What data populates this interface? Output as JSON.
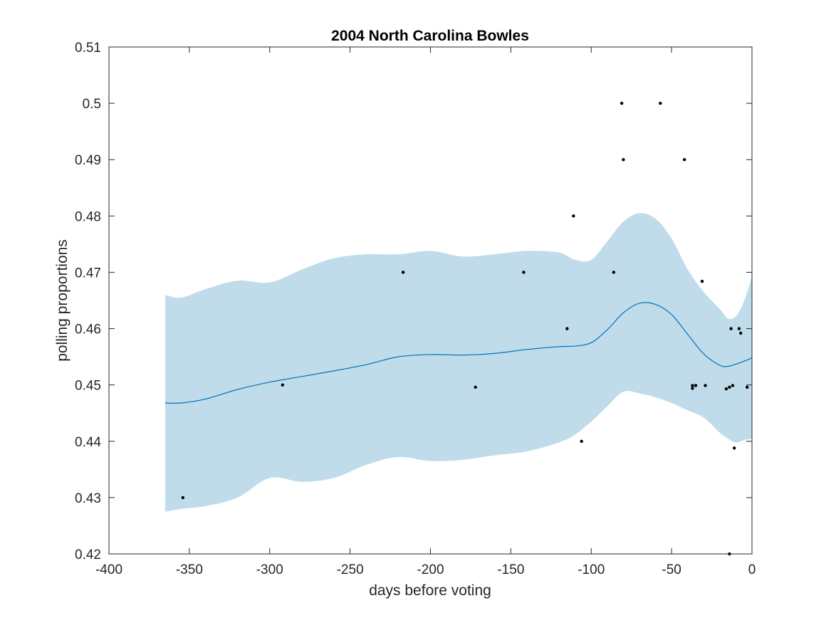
{
  "chart_data": {
    "type": "line",
    "title": "2004 North Carolina Bowles",
    "xlabel": "days before voting",
    "ylabel": "polling proportions",
    "xlim": [
      -400,
      0
    ],
    "ylim": [
      0.42,
      0.51
    ],
    "xticks": [
      "-400",
      "-350",
      "-300",
      "-250",
      "-200",
      "-150",
      "-100",
      "-50",
      "0"
    ],
    "xtick_values": [
      -400,
      -350,
      -300,
      -250,
      -200,
      -150,
      -100,
      -50,
      0
    ],
    "yticks": [
      "0.42",
      "0.43",
      "0.44",
      "0.45",
      "0.46",
      "0.47",
      "0.48",
      "0.49",
      "0.5",
      "0.51"
    ],
    "ytick_values": [
      0.42,
      0.43,
      0.44,
      0.45,
      0.46,
      0.47,
      0.48,
      0.49,
      0.5,
      0.51
    ],
    "grid": false,
    "colors": {
      "mean": "#0072bd",
      "band": "#c0dceb",
      "points": "#000000",
      "axes": "#262626"
    },
    "band": {
      "x": [
        -365,
        -355,
        -340,
        -320,
        -300,
        -280,
        -260,
        -240,
        -220,
        -200,
        -180,
        -160,
        -140,
        -120,
        -110,
        -100,
        -90,
        -80,
        -70,
        -60,
        -50,
        -40,
        -30,
        -20,
        -15,
        -10,
        -5,
        0
      ],
      "upper": [
        0.466,
        0.4655,
        0.467,
        0.4685,
        0.4682,
        0.4705,
        0.4725,
        0.4732,
        0.4732,
        0.4738,
        0.4728,
        0.4732,
        0.4738,
        0.4735,
        0.4722,
        0.4722,
        0.4755,
        0.479,
        0.4805,
        0.4795,
        0.476,
        0.4705,
        0.4665,
        0.4635,
        0.4618,
        0.4622,
        0.4648,
        0.4693
      ],
      "lower": [
        0.4275,
        0.428,
        0.4285,
        0.43,
        0.4335,
        0.4328,
        0.4335,
        0.4358,
        0.4372,
        0.4365,
        0.4367,
        0.4375,
        0.4382,
        0.4398,
        0.4412,
        0.4435,
        0.4462,
        0.4488,
        0.4485,
        0.4478,
        0.4468,
        0.4455,
        0.4442,
        0.4415,
        0.4405,
        0.4398,
        0.4402,
        0.4405
      ]
    },
    "series": [
      {
        "x": [
          -365,
          -355,
          -340,
          -320,
          -300,
          -280,
          -260,
          -240,
          -220,
          -200,
          -180,
          -160,
          -140,
          -120,
          -110,
          -100,
          -90,
          -80,
          -70,
          -60,
          -50,
          -40,
          -30,
          -20,
          -15,
          -10,
          -5,
          0
        ],
        "values": [
          0.4468,
          0.4468,
          0.4475,
          0.4492,
          0.4505,
          0.4515,
          0.4525,
          0.4536,
          0.455,
          0.4554,
          0.4553,
          0.4556,
          0.4563,
          0.4568,
          0.4569,
          0.4575,
          0.4598,
          0.4628,
          0.4645,
          0.4643,
          0.4625,
          0.459,
          0.4555,
          0.4535,
          0.4533,
          0.4537,
          0.4542,
          0.4548
        ]
      }
    ],
    "points": {
      "x": [
        -354,
        -292,
        -217,
        -172,
        -142,
        -115,
        -111,
        -106,
        -86,
        -81,
        -80,
        -57,
        -42,
        -31,
        -37,
        -37,
        -35,
        -29,
        -16,
        -14,
        -13,
        -12,
        -11,
        -8,
        -7,
        -3,
        -14
      ],
      "y": [
        0.43,
        0.45,
        0.47,
        0.4496,
        0.47,
        0.46,
        0.48,
        0.44,
        0.47,
        0.5,
        0.49,
        0.5,
        0.49,
        0.4684,
        0.4494,
        0.4499,
        0.4499,
        0.4499,
        0.4493,
        0.4496,
        0.46,
        0.4499,
        0.4388,
        0.46,
        0.4592,
        0.4496,
        0.42
      ]
    }
  }
}
